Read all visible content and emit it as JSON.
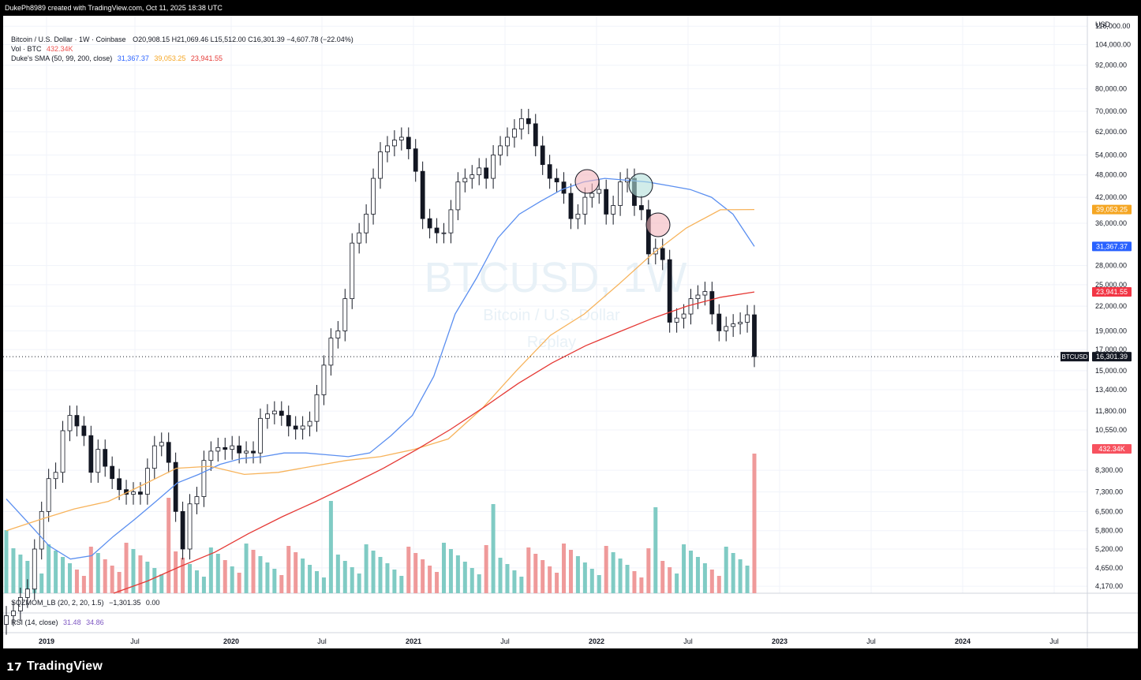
{
  "header": {
    "caption": "DukePh8989 created with TradingView.com, Oct 11, 2025 18:38 UTC"
  },
  "legend": {
    "symbol": "Bitcoin / U.S. Dollar · 1W · Coinbase",
    "ohlc": "O20,908.15  H21,069.46  L15,512.00  C16,301.39  −4,607.78 (−22.04%)",
    "vol_label": "Vol · BTC",
    "vol_value": "432.34K",
    "sma_label": "Duke's SMA (50, 99, 200, close)",
    "sma_values": [
      "31,367.37",
      "39,053.25",
      "23,941.55"
    ]
  },
  "watermark": {
    "symbol": "BTCUSD, 1W",
    "name": "Bitcoin / U.S. Dollar",
    "replay": "Replay"
  },
  "indicators": {
    "sqzmom": {
      "label": "SQZMOM_LB (20, 2, 20, 1.5)",
      "values": [
        "−1,301.35",
        "0.00"
      ]
    },
    "rsi": {
      "label": "RSI (14, close)",
      "values": [
        "31.48",
        "34.86"
      ]
    }
  },
  "price_axis": {
    "currency": "USD",
    "ticks": [
      "116,000.00",
      "104,000.00",
      "92,000.00",
      "80,000.00",
      "70,000.00",
      "62,000.00",
      "54,000.00",
      "48,000.00",
      "42,000.00",
      "36,000.00",
      "28,000.00",
      "25,000.00",
      "22,000.00",
      "19,000.00",
      "17,000.00",
      "15,000.00",
      "13,400.00",
      "11,800.00",
      "10,550.00",
      "8,300.00",
      "7,300.00",
      "6,500.00",
      "5,800.00",
      "5,200.00",
      "4,650.00",
      "4,170.00"
    ],
    "badges": [
      {
        "label": "39,053.25",
        "color": "#f5a623"
      },
      {
        "label": "31,367.37",
        "color": "#2962ff"
      },
      {
        "label": "23,941.55",
        "color": "#f23645"
      },
      {
        "label": "16,301.39",
        "color": "#131722",
        "tag": "BTCUSD"
      },
      {
        "label": "432.34K",
        "color": "#f7525f"
      }
    ]
  },
  "time_axis": {
    "labels": [
      "2019",
      "Jul",
      "2020",
      "Jul",
      "2021",
      "Jul",
      "2022",
      "Jul",
      "2023",
      "Jul",
      "2024",
      "Jul"
    ]
  },
  "footer": {
    "brand": "TradingView"
  },
  "colors": {
    "sma50": "#5b8ff0",
    "sma99": "#f7b35b",
    "sma200": "#e53935",
    "vol_up": "#80cbc4",
    "vol_down": "#ef9a9a",
    "candle": "#131722"
  },
  "chart_data": {
    "type": "candlestick",
    "timeframe": "1W",
    "y_scale": "log",
    "ylim": [
      4000,
      120000
    ],
    "current_close": 16301.39,
    "series": [
      {
        "name": "Bitcoin / U.S. Dollar",
        "type": "line",
        "values": [
          3500,
          3600,
          3900,
          4100,
          5200,
          6500,
          7900,
          8200,
          10500,
          11500,
          10800,
          10200,
          8200,
          9400,
          8500,
          7900,
          7400,
          7200,
          7300,
          7200,
          8400,
          9600,
          9800,
          8700,
          6500,
          5200,
          6800,
          7100,
          8800,
          9300,
          9500,
          9400,
          9600,
          9200,
          9300,
          9200,
          11300,
          11600,
          11800,
          11500,
          10800,
          10600,
          10800,
          11100,
          13000,
          15500,
          18200,
          19000,
          23000,
          32000,
          34000,
          38000,
          47000,
          55000,
          57000,
          59000,
          60000,
          56000,
          49000,
          37000,
          35000,
          34000,
          34000,
          39000,
          46000,
          47000,
          48000,
          50000,
          47000,
          54000,
          57000,
          60000,
          63000,
          67000,
          65000,
          57000,
          51000,
          47000,
          46000,
          43000,
          37000,
          38000,
          42000,
          43000,
          44000,
          38000,
          40000,
          46000,
          47000,
          40000,
          39000,
          30000,
          31000,
          29000,
          20000,
          20500,
          21000,
          23000,
          23500,
          24000,
          21000,
          19000,
          19500,
          19800,
          20000,
          20900,
          16300
        ]
      },
      {
        "name": "SMA 50",
        "type": "line",
        "values": [
          7000,
          6100,
          5300,
          4900,
          5000,
          5600,
          6200,
          6900,
          7700,
          8100,
          8600,
          8900,
          9000,
          9200,
          9200,
          9100,
          9000,
          9200,
          10200,
          11500,
          14500,
          21000,
          26000,
          33000,
          38000,
          41000,
          44000,
          46000,
          47000,
          46500,
          46000,
          45000,
          44000,
          42000,
          38000,
          31367
        ]
      },
      {
        "name": "SMA 99",
        "type": "line",
        "values": [
          5800,
          6200,
          6600,
          6900,
          7600,
          8400,
          8500,
          8100,
          8200,
          8500,
          8800,
          9000,
          9400,
          10000,
          12000,
          15000,
          18500,
          21000,
          25000,
          30000,
          35000,
          39000,
          39053
        ]
      },
      {
        "name": "SMA 200",
        "type": "line",
        "values": [
          4000,
          4300,
          4700,
          5100,
          5700,
          6300,
          6900,
          7600,
          8400,
          9400,
          10600,
          12100,
          13900,
          15700,
          17400,
          18900,
          20500,
          22000,
          23200,
          23941
        ]
      }
    ],
    "volume_last": "432.34K"
  }
}
